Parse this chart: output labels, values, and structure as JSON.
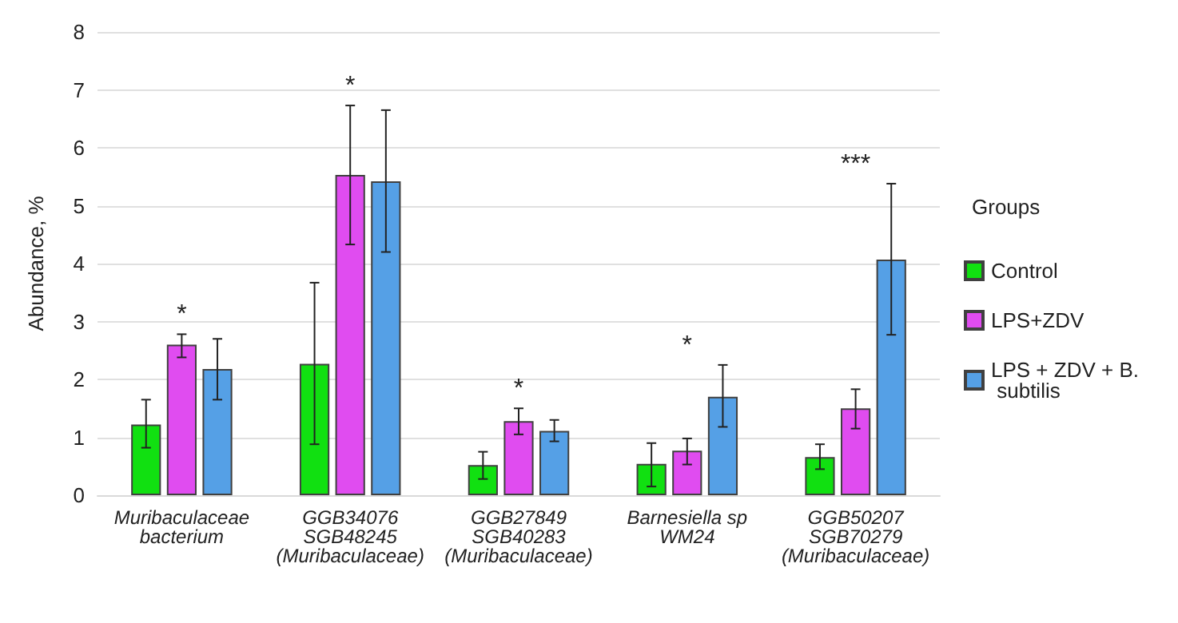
{
  "chart_data": {
    "type": "bar",
    "ylabel": "Abundance, %",
    "legend_title": "Groups",
    "categories": [
      "Muribaculaceae\nbacterium",
      "GGB34076\nSGB48245\n(Muribaculaceae)",
      "GGB27849\nSGB40283\n(Muribaculaceae)",
      "Barnesiella sp\nWM24",
      "GGB50207\nSGB70279\n(Muribaculaceae)"
    ],
    "series": [
      {
        "name": "Control",
        "color": "#11e011",
        "values": [
          1.22,
          2.27,
          0.52,
          0.54,
          0.66
        ],
        "errors": [
          [
            0.82,
            1.65
          ],
          [
            0.88,
            3.67
          ],
          [
            0.28,
            0.75
          ],
          [
            0.15,
            0.9
          ],
          [
            0.45,
            0.88
          ]
        ]
      },
      {
        "name": "LPS+ZDV",
        "color": "#e04cf0",
        "values": [
          2.6,
          5.53,
          1.28,
          0.77,
          1.5
        ],
        "errors": [
          [
            2.38,
            2.78
          ],
          [
            4.33,
            6.73
          ],
          [
            1.05,
            1.5
          ],
          [
            0.53,
            0.98
          ],
          [
            1.15,
            1.83
          ]
        ]
      },
      {
        "name": "LPS + ZDV + B. subtilis",
        "color": "#55a0e6",
        "values": [
          2.18,
          5.42,
          1.11,
          1.7,
          4.07
        ],
        "errors": [
          [
            1.65,
            2.7
          ],
          [
            4.2,
            6.65
          ],
          [
            0.93,
            1.3
          ],
          [
            1.18,
            2.25
          ],
          [
            2.77,
            5.38
          ]
        ]
      }
    ],
    "ylim": [
      0,
      8
    ],
    "yticks": [
      0,
      1,
      2,
      3,
      4,
      5,
      6,
      7,
      8
    ],
    "grid": "y",
    "legend": "right",
    "annotations": [
      "*",
      "*",
      "*",
      "*",
      "***"
    ]
  }
}
